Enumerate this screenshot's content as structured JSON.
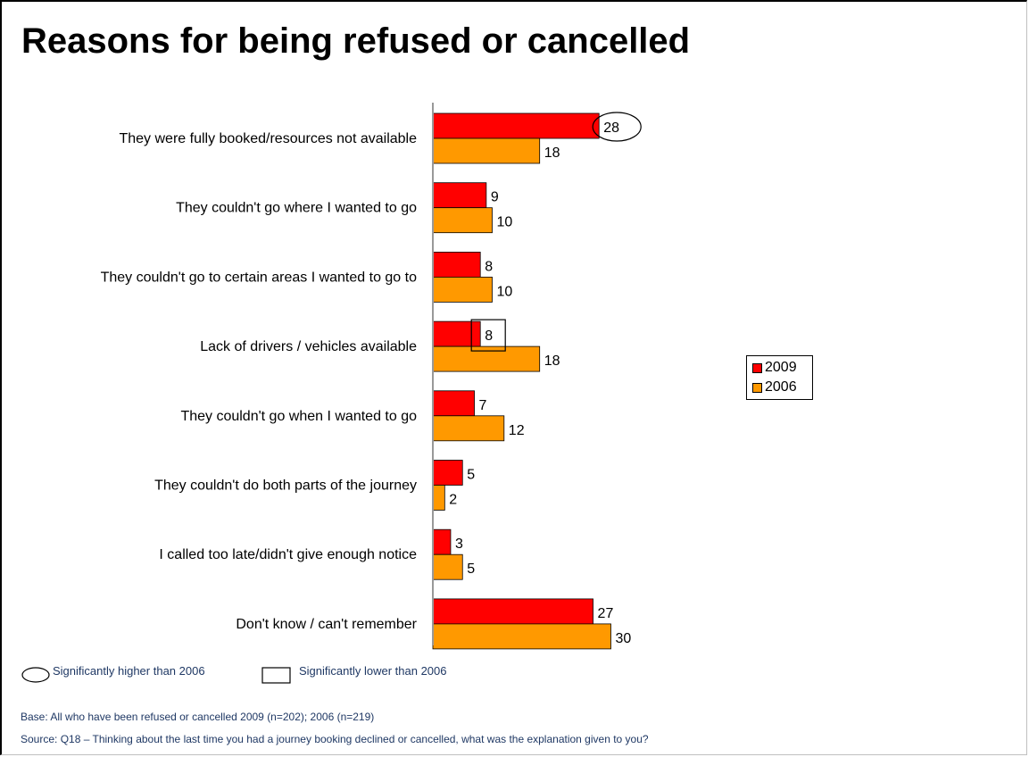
{
  "title": "Reasons for being refused or cancelled",
  "colors": {
    "series_2009": "#ff0000",
    "series_2006": "#ff9900",
    "axis": "#999999"
  },
  "chart_data": {
    "type": "bar",
    "orientation": "horizontal",
    "title": "Reasons for being refused or cancelled",
    "categories": [
      "They were fully booked/resources not available",
      "They couldn't go where I wanted to go",
      "They couldn't go to certain areas I wanted to go to",
      "Lack of drivers / vehicles available",
      "They couldn't go when I wanted to go",
      "They couldn't do both parts of the journey",
      "I called too late/didn't give enough notice",
      "Don't know / can't remember"
    ],
    "series": [
      {
        "name": "2009",
        "values": [
          28,
          9,
          8,
          8,
          7,
          5,
          3,
          27
        ]
      },
      {
        "name": "2006",
        "values": [
          18,
          10,
          10,
          18,
          12,
          2,
          5,
          30
        ]
      }
    ],
    "xlim": [
      0,
      100
    ],
    "data_labels": true,
    "legend": "right",
    "grid": false,
    "significance": [
      {
        "category_index": 0,
        "series": "2009",
        "marker": "ellipse",
        "meaning": "Significantly higher than 2006"
      },
      {
        "category_index": 3,
        "series": "2009",
        "marker": "box",
        "meaning": "Significantly lower than 2006"
      }
    ]
  },
  "legend": {
    "items": [
      "2009",
      "2006"
    ]
  },
  "key": {
    "higher": "Significantly higher than 2006",
    "lower": "Significantly lower than 2006"
  },
  "footnotes": {
    "base": "Base: All who have been refused or cancelled 2009 (n=202); 2006 (n=219)",
    "source": "Source: Q18 – Thinking about the last time you had a journey booking declined or cancelled, what was the explanation given to you?"
  }
}
